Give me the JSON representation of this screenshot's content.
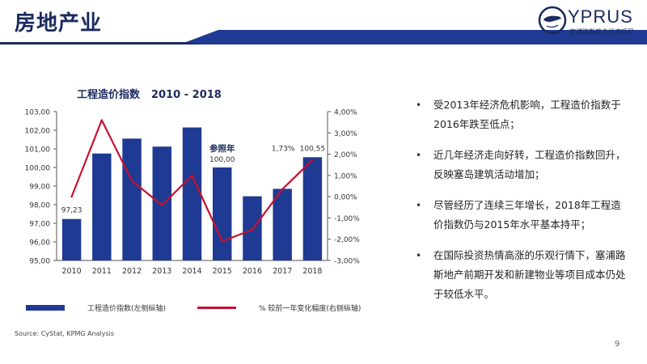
{
  "page": {
    "title": "房地产业",
    "page_number": "9",
    "source": "Source: CyStat, KPMG Analysis"
  },
  "logo": {
    "word": "YPRUS",
    "subtitle": "塞浦路斯基金投资项目"
  },
  "chart_title": {
    "main": "工程造价指数",
    "range": "2010 - 2018"
  },
  "legend": {
    "bar_label": "工程造价指数(左侧纵轴)",
    "line_label": "% 较前一年变化幅度(右侧纵轴)"
  },
  "annotations": {
    "ref_label": "参照年",
    "ref_value": "100,00",
    "start_value": "97,23",
    "end_value": "100,55",
    "end_pct": "1,73%"
  },
  "bullets": [
    "受2013年经济危机影响，工程造价指数于2016年跌至低点；",
    "近几年经济走向好转，工程造价指数回升，反映塞岛建筑活动增加；",
    "尽管经历了连续三年增长，2018年工程造价指数仍与2015年水平基本持平；",
    "在国际投资热情高涨的乐观行情下，塞浦路斯地产前期开发和新建物业等项目成本仍处于较低水平。"
  ],
  "chart_data": {
    "type": "bar",
    "title": "工程造价指数 2010 - 2018",
    "categories": [
      "2010",
      "2011",
      "2012",
      "2013",
      "2014",
      "2015",
      "2016",
      "2017",
      "2018"
    ],
    "series": [
      {
        "name": "工程造价指数(左侧纵轴)",
        "type": "bar",
        "axis": "left",
        "values": [
          97.23,
          100.75,
          101.55,
          101.12,
          102.15,
          100.0,
          98.45,
          98.85,
          100.55
        ]
      },
      {
        "name": "% 较前一年变化幅度(右侧纵轴)",
        "type": "line",
        "axis": "right",
        "values": [
          0.0,
          3.6,
          0.75,
          -0.4,
          1.0,
          -2.1,
          -1.55,
          0.35,
          1.73
        ]
      }
    ],
    "y_left": {
      "min": 95,
      "max": 103,
      "step": 1,
      "tick_labels": [
        "95,00",
        "96,00",
        "97,00",
        "98,00",
        "99,00",
        "100,00",
        "101,00",
        "102,00",
        "103,00"
      ]
    },
    "y_right": {
      "min": -3,
      "max": 4,
      "step": 1,
      "tick_labels": [
        "-3,00%",
        "-2,00%",
        "-1,00%",
        "0,00%",
        "1,00%",
        "2,00%",
        "3,00%",
        "4,00%"
      ]
    },
    "grid": false,
    "legend_position": "bottom",
    "colors": {
      "bar": "#1f3a93",
      "line": "#c8102e",
      "title": "#1a2a5e"
    }
  }
}
